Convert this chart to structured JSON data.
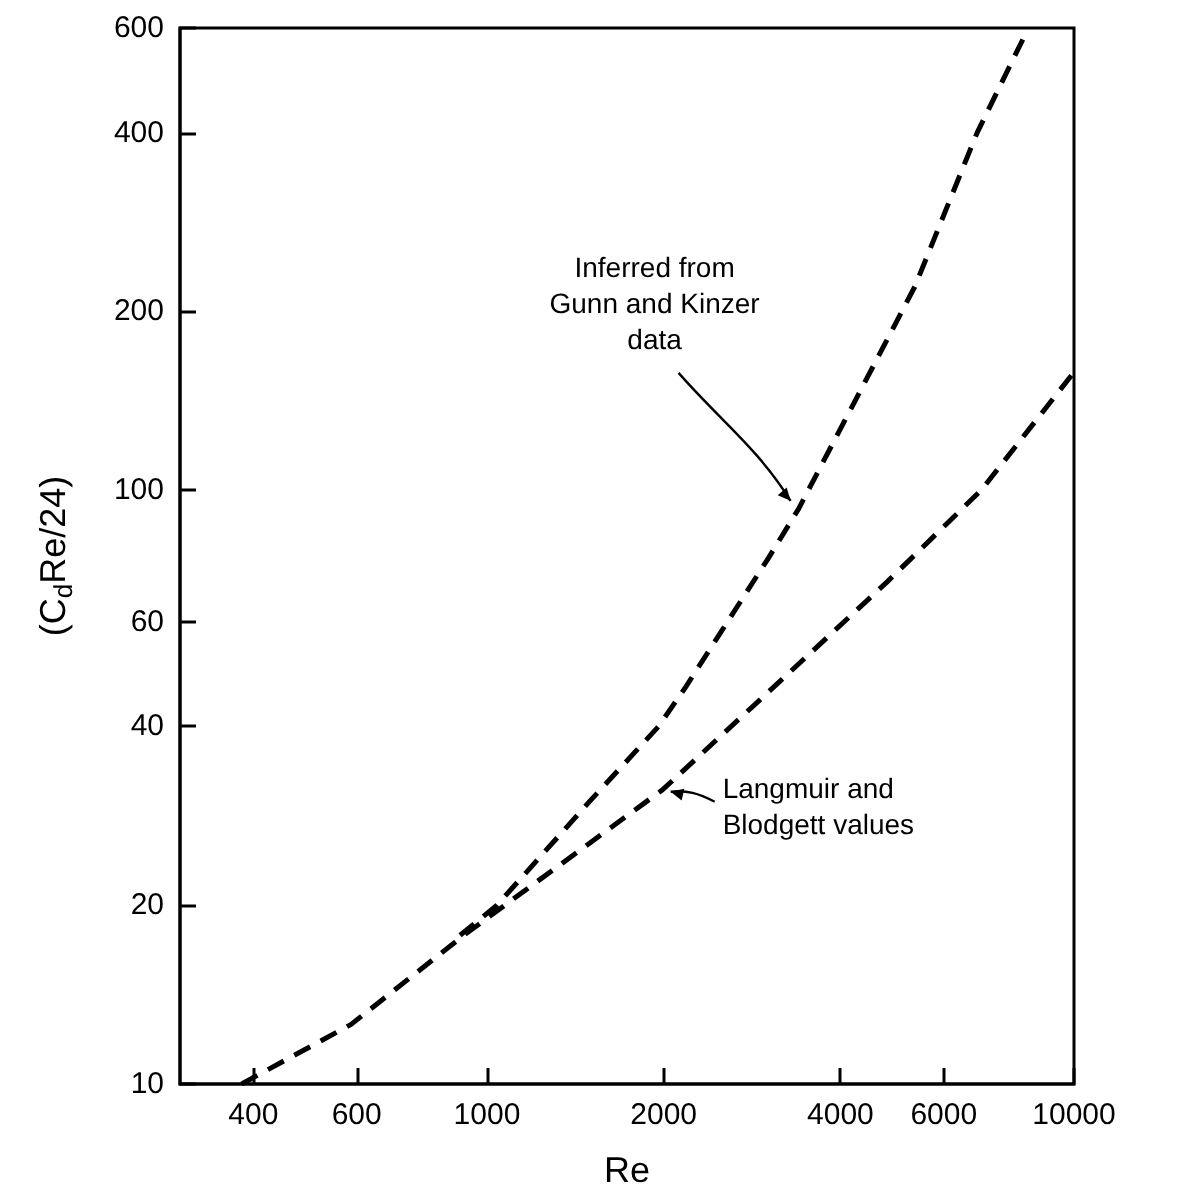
{
  "chart_data": {
    "type": "line",
    "xlabel": "Re",
    "ylabel": "(C$_{d}$Re/24)",
    "log": "xy",
    "grid": false,
    "marker": "none",
    "line_style": "dashed",
    "xlim": [
      300,
      10000
    ],
    "xticks": [
      400,
      600,
      1000,
      2000,
      4000,
      6000,
      10000
    ],
    "ylim": [
      10,
      600
    ],
    "yticks": [
      10,
      20,
      40,
      60,
      100,
      200,
      400,
      600
    ],
    "series": [
      {
        "color": "#000000",
        "x": [
          900,
          1040,
          1500,
          1960,
          2180,
          3020,
          3395,
          5355,
          6840,
          8315
        ],
        "values": [
          17.8,
          20,
          30,
          40,
          46.6,
          77,
          93,
          220,
          400,
          593
        ]
      },
      {
        "color": "#000000",
        "x": [
          382,
          587,
          913,
          1992,
          3000,
          4800,
          6950,
          10000
        ],
        "values": [
          10,
          12.6,
          17.8,
          31.3,
          45.5,
          70,
          100,
          158
        ]
      }
    ],
    "annotations": [
      {
        "text": "Inferred from\nGunn and Kinzer\ndata",
        "x": 3395,
        "y": 93
      },
      {
        "text": "Langmuir and\nBlodgett values",
        "x": 1992,
        "y": 31.3
      }
    ]
  }
}
